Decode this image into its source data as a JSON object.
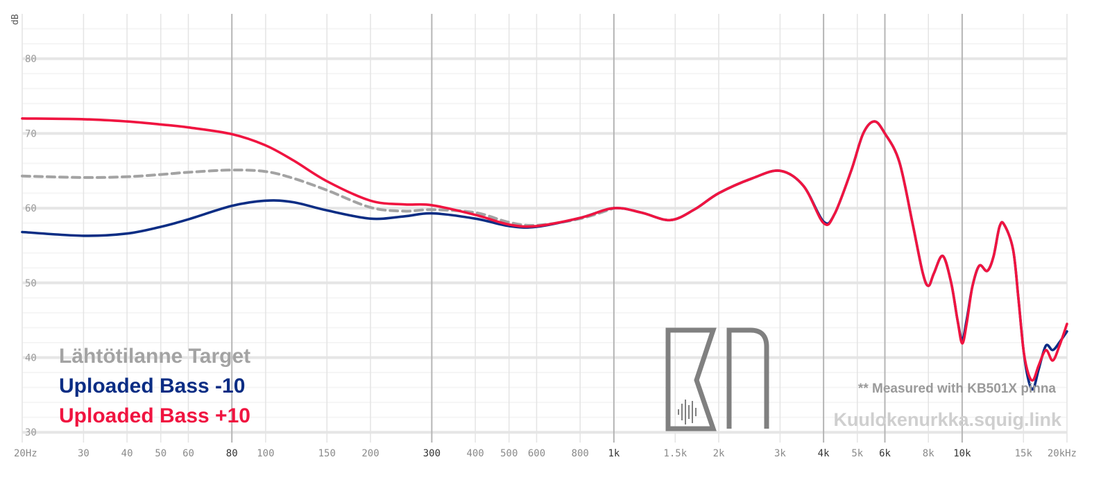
{
  "chart_data": {
    "type": "line",
    "ylabel": "dB",
    "x_scale": "log",
    "xlim": [
      20,
      20000
    ],
    "ylim": [
      29,
      86
    ],
    "y_ticks": [
      30,
      40,
      50,
      60,
      70,
      80
    ],
    "x_ticks": [
      {
        "value": 20,
        "label": "20Hz",
        "major": false
      },
      {
        "value": 30,
        "label": "30",
        "major": false
      },
      {
        "value": 40,
        "label": "40",
        "major": false
      },
      {
        "value": 50,
        "label": "50",
        "major": false
      },
      {
        "value": 60,
        "label": "60",
        "major": false
      },
      {
        "value": 80,
        "label": "80",
        "major": true
      },
      {
        "value": 100,
        "label": "100",
        "major": false
      },
      {
        "value": 150,
        "label": "150",
        "major": false
      },
      {
        "value": 200,
        "label": "200",
        "major": false
      },
      {
        "value": 300,
        "label": "300",
        "major": true
      },
      {
        "value": 400,
        "label": "400",
        "major": false
      },
      {
        "value": 500,
        "label": "500",
        "major": false
      },
      {
        "value": 600,
        "label": "600",
        "major": false
      },
      {
        "value": 800,
        "label": "800",
        "major": false
      },
      {
        "value": 1000,
        "label": "1k",
        "major": true
      },
      {
        "value": 1500,
        "label": "1.5k",
        "major": false
      },
      {
        "value": 2000,
        "label": "2k",
        "major": false
      },
      {
        "value": 3000,
        "label": "3k",
        "major": false
      },
      {
        "value": 4000,
        "label": "4k",
        "major": true
      },
      {
        "value": 5000,
        "label": "5k",
        "major": false
      },
      {
        "value": 6000,
        "label": "6k",
        "major": true
      },
      {
        "value": 8000,
        "label": "8k",
        "major": false
      },
      {
        "value": 10000,
        "label": "10k",
        "major": true
      },
      {
        "value": 15000,
        "label": "15k",
        "major": false
      },
      {
        "value": 20000,
        "label": "20kHz",
        "major": false
      }
    ],
    "series": [
      {
        "name": "Lähtötilanne Target",
        "color": "#a3a3a3",
        "dashed": true,
        "points": [
          [
            20,
            64.3
          ],
          [
            30,
            64.1
          ],
          [
            40,
            64.2
          ],
          [
            50,
            64.5
          ],
          [
            60,
            64.8
          ],
          [
            80,
            65.1
          ],
          [
            100,
            64.9
          ],
          [
            120,
            64.0
          ],
          [
            150,
            62.4
          ],
          [
            200,
            60.1
          ],
          [
            250,
            59.6
          ],
          [
            300,
            59.8
          ],
          [
            400,
            59.4
          ],
          [
            500,
            58.1
          ],
          [
            600,
            57.7
          ],
          [
            800,
            58.6
          ],
          [
            1000,
            60.0
          ]
        ]
      },
      {
        "name": "Uploaded Bass -10",
        "color": "#0b2d84",
        "dashed": false,
        "points": [
          [
            20,
            56.8
          ],
          [
            30,
            56.3
          ],
          [
            40,
            56.6
          ],
          [
            50,
            57.5
          ],
          [
            60,
            58.5
          ],
          [
            80,
            60.3
          ],
          [
            100,
            61.0
          ],
          [
            120,
            60.8
          ],
          [
            150,
            59.7
          ],
          [
            200,
            58.6
          ],
          [
            250,
            58.9
          ],
          [
            300,
            59.3
          ],
          [
            400,
            58.6
          ],
          [
            500,
            57.6
          ],
          [
            600,
            57.5
          ],
          [
            800,
            58.7
          ],
          [
            1000,
            60.0
          ],
          [
            1200,
            59.4
          ],
          [
            1450,
            58.4
          ],
          [
            1700,
            59.8
          ],
          [
            2000,
            62.0
          ],
          [
            2500,
            64.0
          ],
          [
            3000,
            65.0
          ],
          [
            3500,
            63.0
          ],
          [
            4000,
            58.2
          ],
          [
            4300,
            59.2
          ],
          [
            4800,
            65.0
          ],
          [
            5200,
            70.0
          ],
          [
            5600,
            71.6
          ],
          [
            6000,
            70.0
          ],
          [
            6600,
            66.2
          ],
          [
            7200,
            58.0
          ],
          [
            7700,
            51.4
          ],
          [
            8000,
            49.6
          ],
          [
            8300,
            51.3
          ],
          [
            8800,
            53.6
          ],
          [
            9300,
            50.0
          ],
          [
            9700,
            45.0
          ],
          [
            10000,
            42.4
          ],
          [
            10300,
            45.0
          ],
          [
            10700,
            49.5
          ],
          [
            11200,
            52.3
          ],
          [
            11800,
            51.6
          ],
          [
            12300,
            53.5
          ],
          [
            12800,
            57.5
          ],
          [
            13200,
            57.8
          ],
          [
            14000,
            54.5
          ],
          [
            14500,
            48.0
          ],
          [
            15000,
            41.0
          ],
          [
            15500,
            37.0
          ],
          [
            16000,
            35.8
          ],
          [
            16600,
            38.5
          ],
          [
            17400,
            41.6
          ],
          [
            18200,
            41.0
          ],
          [
            19000,
            42.0
          ],
          [
            20000,
            43.5
          ]
        ]
      },
      {
        "name": "Uploaded Bass +10",
        "color": "#f01440",
        "dashed": false,
        "points": [
          [
            20,
            72.0
          ],
          [
            30,
            71.9
          ],
          [
            40,
            71.6
          ],
          [
            50,
            71.2
          ],
          [
            60,
            70.8
          ],
          [
            80,
            69.9
          ],
          [
            100,
            68.4
          ],
          [
            120,
            66.4
          ],
          [
            150,
            63.6
          ],
          [
            200,
            61.0
          ],
          [
            250,
            60.5
          ],
          [
            300,
            60.4
          ],
          [
            400,
            59.1
          ],
          [
            500,
            57.8
          ],
          [
            600,
            57.6
          ],
          [
            800,
            58.7
          ],
          [
            1000,
            60.0
          ],
          [
            1200,
            59.4
          ],
          [
            1450,
            58.4
          ],
          [
            1700,
            59.8
          ],
          [
            2000,
            62.0
          ],
          [
            2500,
            64.0
          ],
          [
            3000,
            65.0
          ],
          [
            3500,
            63.0
          ],
          [
            4000,
            58.0
          ],
          [
            4300,
            59.2
          ],
          [
            4800,
            65.0
          ],
          [
            5200,
            70.0
          ],
          [
            5600,
            71.6
          ],
          [
            6000,
            70.0
          ],
          [
            6600,
            66.2
          ],
          [
            7200,
            58.0
          ],
          [
            7700,
            51.4
          ],
          [
            8000,
            49.6
          ],
          [
            8300,
            51.3
          ],
          [
            8800,
            53.6
          ],
          [
            9300,
            50.0
          ],
          [
            9700,
            45.0
          ],
          [
            10000,
            41.9
          ],
          [
            10300,
            44.5
          ],
          [
            10700,
            49.5
          ],
          [
            11200,
            52.3
          ],
          [
            11800,
            51.6
          ],
          [
            12300,
            53.5
          ],
          [
            12800,
            57.5
          ],
          [
            13200,
            57.8
          ],
          [
            14000,
            54.5
          ],
          [
            14500,
            48.0
          ],
          [
            15000,
            41.0
          ],
          [
            15500,
            37.8
          ],
          [
            16000,
            37.0
          ],
          [
            16600,
            39.0
          ],
          [
            17400,
            41.0
          ],
          [
            18200,
            39.6
          ],
          [
            19000,
            41.5
          ],
          [
            20000,
            44.5
          ]
        ]
      }
    ]
  },
  "annotations": {
    "note": "** Measured with KB501X pinna",
    "site": "Kuulokenurkka.squig.link"
  }
}
